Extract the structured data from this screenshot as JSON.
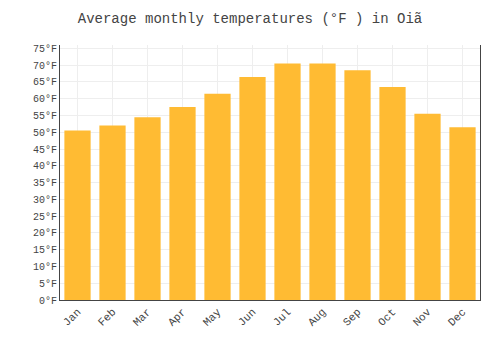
{
  "chart_data": {
    "type": "bar",
    "title": "Average monthly temperatures (°F ) in Oiã",
    "categories": [
      "Jan",
      "Feb",
      "Mar",
      "Apr",
      "May",
      "Jun",
      "Jul",
      "Aug",
      "Sep",
      "Oct",
      "Nov",
      "Dec"
    ],
    "values": [
      50.5,
      52.0,
      54.5,
      57.5,
      61.5,
      66.5,
      70.5,
      70.5,
      68.5,
      63.5,
      55.5,
      51.5
    ],
    "color": "#FFBB33",
    "ylim": [
      0,
      76
    ],
    "yticks": [
      {
        "value": 0,
        "label": "0°F"
      },
      {
        "value": 5,
        "label": "5°F"
      },
      {
        "value": 10,
        "label": "10°F"
      },
      {
        "value": 15,
        "label": "15°F"
      },
      {
        "value": 20,
        "label": "20°F"
      },
      {
        "value": 25,
        "label": "25°F"
      },
      {
        "value": 30,
        "label": "30°F"
      },
      {
        "value": 35,
        "label": "35°F"
      },
      {
        "value": 40,
        "label": "40°F"
      },
      {
        "value": 45,
        "label": "45°F"
      },
      {
        "value": 50,
        "label": "50°F"
      },
      {
        "value": 55,
        "label": "55°F"
      },
      {
        "value": 60,
        "label": "60°F"
      },
      {
        "value": 65,
        "label": "65°F"
      },
      {
        "value": 70,
        "label": "70°F"
      },
      {
        "value": 75,
        "label": "75°F"
      }
    ],
    "grid": true
  }
}
